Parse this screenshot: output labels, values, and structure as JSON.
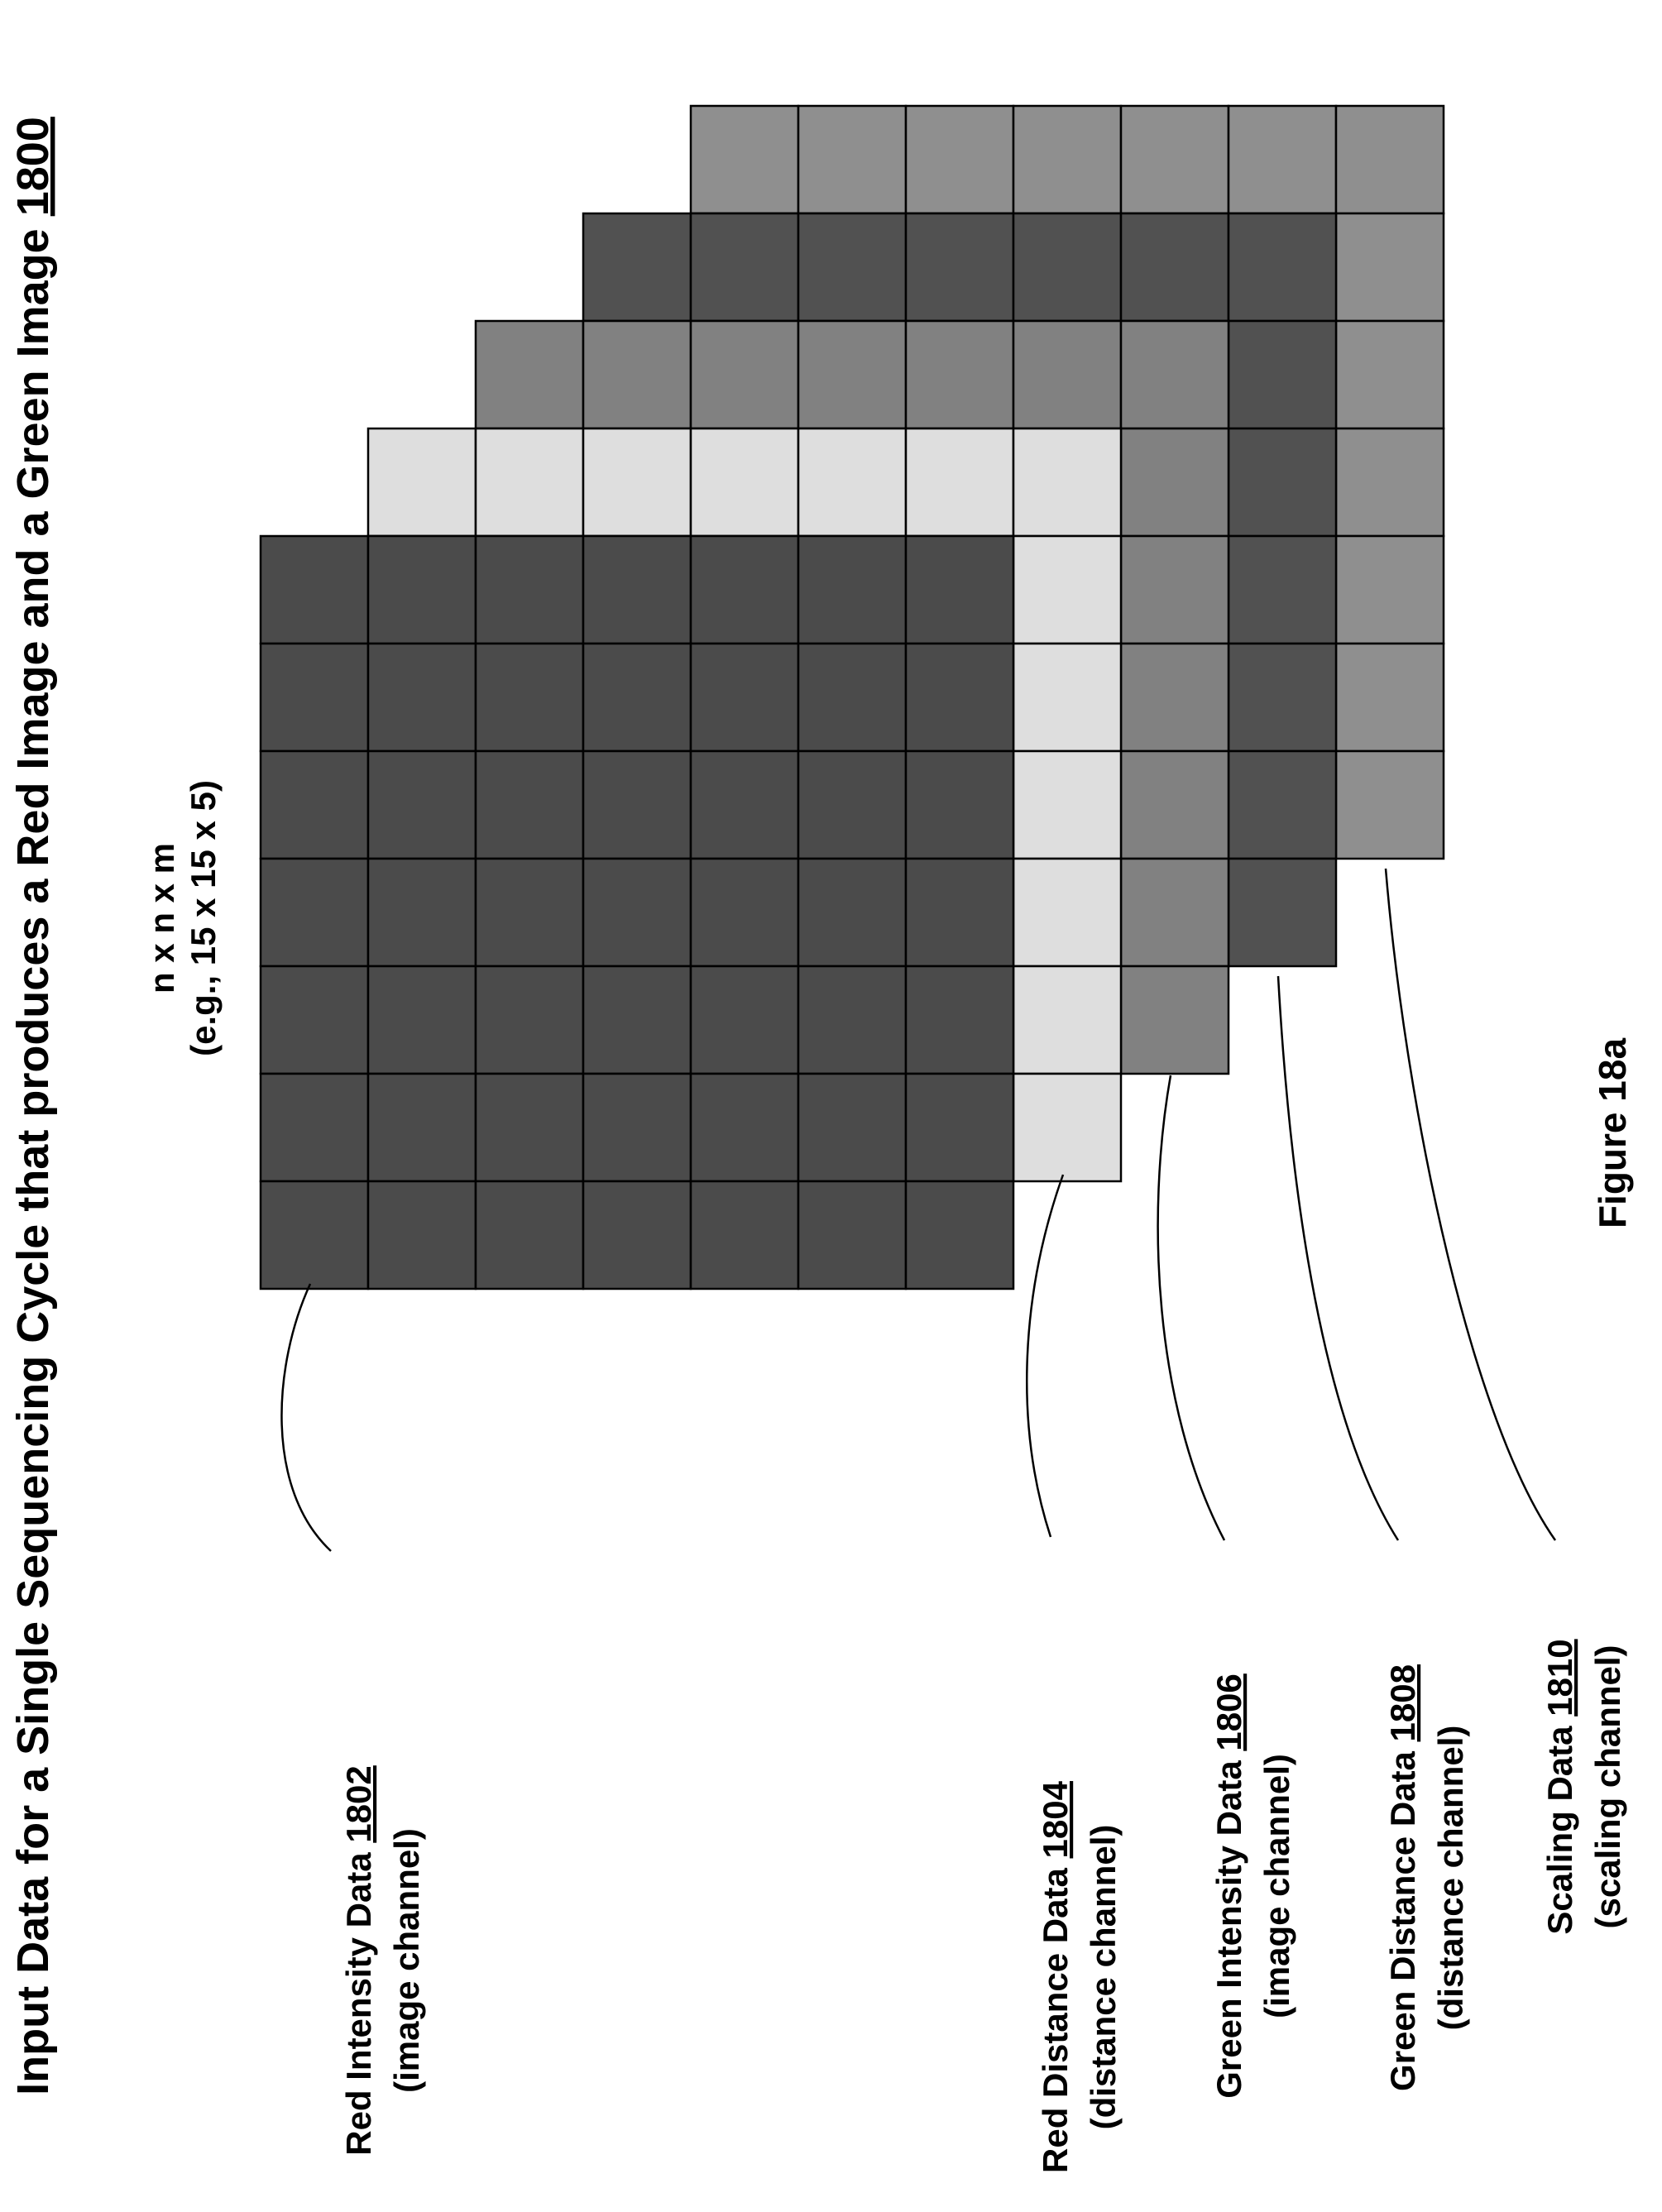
{
  "title": {
    "prefix": "Input Data for a Single Sequencing Cycle that produces a Red Image and a Green Image ",
    "ref": "1800"
  },
  "dimension": {
    "line1": "n x n x m",
    "line2": "(e.g., 15 x 15 x 5)"
  },
  "figure_label": "Figure 18a",
  "layers": [
    {
      "name": "Red Intensity Data ",
      "ref": "1802",
      "sub": "(image channel)",
      "color": "#4b4b4b"
    },
    {
      "name": "Red Distance Data ",
      "ref": "1804",
      "sub": "(distance channel)",
      "color": "#dedede"
    },
    {
      "name": "Green Intensity Data ",
      "ref": "1806",
      "sub": "(image channel)",
      "color": "#818181"
    },
    {
      "name": "Green Distance Data ",
      "ref": "1808",
      "sub": "(distance channel)",
      "color": "#515151"
    },
    {
      "name": "Scaling Data ",
      "ref": "1810",
      "sub": "(scaling channel)",
      "color": "#8f8f8f"
    }
  ]
}
